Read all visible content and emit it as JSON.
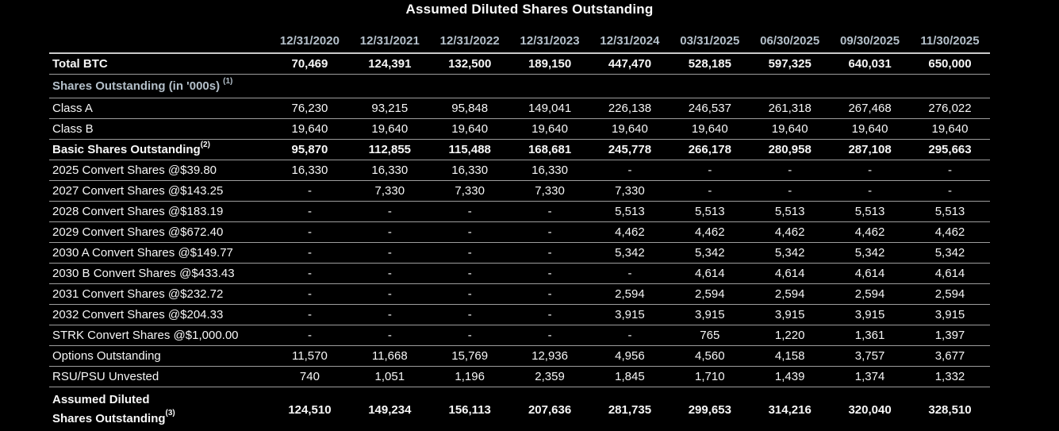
{
  "title": "Assumed Diluted Shares Outstanding",
  "colors": {
    "background": "#000000",
    "text": "#f7f7f7",
    "header_text": "#b4c0ca",
    "section_text": "#b4c0ca",
    "line": "#9d9d9d"
  },
  "chart_data": {
    "type": "table",
    "title": "Assumed Diluted Shares Outstanding",
    "columns": [
      "12/31/2020",
      "12/31/2021",
      "12/31/2022",
      "12/31/2023",
      "12/31/2024",
      "03/31/2025",
      "06/30/2025",
      "09/30/2025",
      "11/30/2025"
    ],
    "rows": [
      {
        "name": "total-btc",
        "label": "Total BTC",
        "style": "bold",
        "values": [
          "70,469",
          "124,391",
          "132,500",
          "189,150",
          "447,470",
          "528,185",
          "597,325",
          "640,031",
          "650,000"
        ]
      },
      {
        "name": "shares-outstanding-section",
        "label": "Shares Outstanding (in '000s)",
        "sup": "(1)",
        "sup_gap": true,
        "style": "section",
        "values": []
      },
      {
        "name": "class-a",
        "label": "Class A",
        "style": "normal",
        "values": [
          "76,230",
          "93,215",
          "95,848",
          "149,041",
          "226,138",
          "246,537",
          "261,318",
          "267,468",
          "276,022"
        ]
      },
      {
        "name": "class-b",
        "label": "Class B",
        "style": "normal",
        "values": [
          "19,640",
          "19,640",
          "19,640",
          "19,640",
          "19,640",
          "19,640",
          "19,640",
          "19,640",
          "19,640"
        ]
      },
      {
        "name": "basic-shares-outstanding",
        "label": "Basic Shares Outstanding",
        "sup": "(2)",
        "style": "bold",
        "values": [
          "95,870",
          "112,855",
          "115,488",
          "168,681",
          "245,778",
          "266,178",
          "280,958",
          "287,108",
          "295,663"
        ]
      },
      {
        "name": "convert-2025",
        "label": "2025 Convert Shares @$39.80",
        "style": "normal",
        "values": [
          "16,330",
          "16,330",
          "16,330",
          "16,330",
          "-",
          "-",
          "-",
          "-",
          "-"
        ]
      },
      {
        "name": "convert-2027",
        "label": "2027 Convert Shares @$143.25",
        "style": "normal",
        "values": [
          "-",
          "7,330",
          "7,330",
          "7,330",
          "7,330",
          "-",
          "-",
          "-",
          "-"
        ]
      },
      {
        "name": "convert-2028",
        "label": "2028 Convert Shares @$183.19",
        "style": "normal",
        "values": [
          "-",
          "-",
          "-",
          "-",
          "5,513",
          "5,513",
          "5,513",
          "5,513",
          "5,513"
        ]
      },
      {
        "name": "convert-2029",
        "label": "2029 Convert Shares @$672.40",
        "style": "normal",
        "values": [
          "-",
          "-",
          "-",
          "-",
          "4,462",
          "4,462",
          "4,462",
          "4,462",
          "4,462"
        ]
      },
      {
        "name": "convert-2030a",
        "label": "2030 A Convert Shares @$149.77",
        "style": "normal",
        "values": [
          "-",
          "-",
          "-",
          "-",
          "5,342",
          "5,342",
          "5,342",
          "5,342",
          "5,342"
        ]
      },
      {
        "name": "convert-2030b",
        "label": "2030 B Convert Shares @$433.43",
        "style": "normal",
        "values": [
          "-",
          "-",
          "-",
          "-",
          "-",
          "4,614",
          "4,614",
          "4,614",
          "4,614"
        ]
      },
      {
        "name": "convert-2031",
        "label": "2031 Convert Shares @$232.72",
        "style": "normal",
        "values": [
          "-",
          "-",
          "-",
          "-",
          "2,594",
          "2,594",
          "2,594",
          "2,594",
          "2,594"
        ]
      },
      {
        "name": "convert-2032",
        "label": "2032 Convert Shares @$204.33",
        "style": "normal",
        "values": [
          "-",
          "-",
          "-",
          "-",
          "3,915",
          "3,915",
          "3,915",
          "3,915",
          "3,915"
        ]
      },
      {
        "name": "convert-strk",
        "label": "STRK Convert Shares @$1,000.00",
        "style": "normal",
        "values": [
          "-",
          "-",
          "-",
          "-",
          "-",
          "765",
          "1,220",
          "1,361",
          "1,397"
        ]
      },
      {
        "name": "options-outstanding",
        "label": "Options Outstanding",
        "style": "normal",
        "values": [
          "11,570",
          "11,668",
          "15,769",
          "12,936",
          "4,956",
          "4,560",
          "4,158",
          "3,757",
          "3,677"
        ]
      },
      {
        "name": "rsu-psu-unvested",
        "label": "RSU/PSU Unvested",
        "style": "normal",
        "values": [
          "740",
          "1,051",
          "1,196",
          "2,359",
          "1,845",
          "1,710",
          "1,439",
          "1,374",
          "1,332"
        ]
      },
      {
        "name": "assumed-diluted",
        "label_lines": [
          "Assumed Diluted",
          "Shares Outstanding"
        ],
        "sup": "(3)",
        "style": "total",
        "values": [
          "124,510",
          "149,234",
          "156,113",
          "207,636",
          "281,735",
          "299,653",
          "314,216",
          "320,040",
          "328,510"
        ]
      }
    ]
  }
}
